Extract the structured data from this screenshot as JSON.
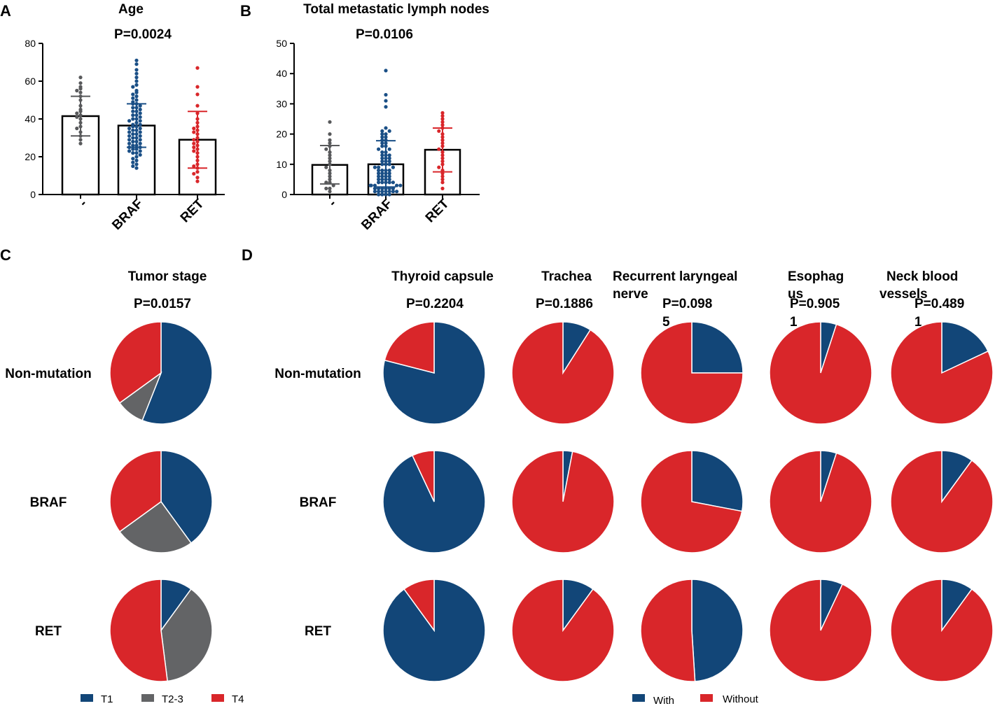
{
  "colors": {
    "t1": "#124678",
    "t23": "#636466",
    "t4": "#d9262a",
    "with": "#124678",
    "without": "#d9262a",
    "dot_none": "#58595b",
    "dot_braf": "#1a4f86",
    "dot_ret": "#d9262a"
  },
  "panel_labels": {
    "a": "A",
    "b": "B",
    "c": "C",
    "d": "D"
  },
  "groups": [
    "-",
    "BRAF",
    "RET"
  ],
  "rows": [
    "Non-mutation",
    "BRAF",
    "RET"
  ],
  "chart_data": [
    {
      "id": "A",
      "type": "bar",
      "title": "Age",
      "p_value": "P=0.0024",
      "categories": [
        "-",
        "BRAF",
        "RET"
      ],
      "values": [
        41.5,
        36.5,
        29
      ],
      "sd_low": [
        31,
        25,
        14
      ],
      "sd_high": [
        52,
        48,
        44
      ],
      "ylim": [
        0,
        80
      ],
      "yticks": [
        0,
        20,
        40,
        60,
        80
      ],
      "points": [
        [
          62,
          59,
          57,
          56,
          55,
          54,
          52,
          50,
          47,
          45,
          44,
          43,
          42,
          41,
          40,
          38,
          36,
          35,
          33,
          31,
          29,
          27
        ],
        [
          71,
          69,
          66,
          64,
          62,
          60,
          58,
          57,
          55,
          54,
          53,
          52,
          51,
          50,
          49,
          48,
          48,
          47,
          46,
          46,
          45,
          44,
          44,
          43,
          42,
          42,
          41,
          40,
          40,
          39,
          39,
          38,
          37,
          37,
          36,
          36,
          35,
          35,
          34,
          34,
          33,
          33,
          32,
          32,
          31,
          31,
          30,
          30,
          29,
          29,
          28,
          28,
          27,
          27,
          26,
          26,
          25,
          25,
          24,
          24,
          23,
          23,
          22,
          22,
          21,
          20,
          19,
          18,
          17,
          16,
          15,
          14
        ],
        [
          67,
          57,
          53,
          47,
          43,
          40,
          38,
          36,
          35,
          34,
          33,
          32,
          30,
          29,
          28,
          27,
          26,
          25,
          24,
          23,
          22,
          20,
          18,
          16,
          15,
          14,
          12,
          11,
          9,
          7
        ]
      ]
    },
    {
      "id": "B",
      "type": "bar",
      "title": "Total metastatic lymph nodes",
      "p_value": "P=0.0106",
      "categories": [
        "-",
        "BRAF",
        "RET"
      ],
      "values": [
        9.8,
        10,
        14.8
      ],
      "sd_low": [
        3.5,
        2.5,
        7.5
      ],
      "sd_high": [
        16.2,
        17.8,
        22
      ],
      "ylim": [
        0,
        50
      ],
      "yticks": [
        0,
        10,
        20,
        30,
        40,
        50
      ],
      "points": [
        [
          24,
          20,
          18,
          17,
          16,
          15,
          14,
          13,
          12,
          11,
          10,
          9,
          8,
          7,
          6,
          5,
          4,
          4,
          3,
          2,
          2,
          1
        ],
        [
          41,
          33,
          31,
          29,
          22,
          21,
          21,
          20,
          20,
          19,
          19,
          18,
          18,
          17,
          17,
          16,
          16,
          15,
          15,
          14,
          14,
          13,
          13,
          13,
          12,
          12,
          12,
          11,
          11,
          11,
          10,
          10,
          10,
          9,
          9,
          9,
          8,
          8,
          8,
          8,
          7,
          7,
          7,
          7,
          6,
          6,
          6,
          6,
          5,
          5,
          5,
          5,
          4,
          4,
          4,
          4,
          4,
          3,
          3,
          3,
          3,
          3,
          2,
          2,
          2,
          2,
          2,
          2,
          1,
          1,
          1,
          1,
          1,
          1,
          1,
          0,
          0,
          0,
          0
        ],
        [
          27,
          26,
          25,
          24,
          23,
          22,
          21,
          20,
          19,
          18,
          17,
          16,
          15,
          14,
          13,
          12,
          11,
          10,
          9,
          8,
          7,
          6,
          5,
          4,
          2
        ]
      ]
    },
    {
      "id": "C",
      "type": "pie",
      "title": "Tumor stage",
      "p_value": "P=0.0157",
      "categories": [
        "T1",
        "T2-3",
        "T4"
      ],
      "series": [
        {
          "name": "Non-mutation",
          "values": [
            56,
            9,
            35
          ]
        },
        {
          "name": "BRAF",
          "values": [
            40,
            25,
            35
          ]
        },
        {
          "name": "RET",
          "values": [
            10,
            38,
            52
          ]
        }
      ]
    },
    {
      "id": "D",
      "type": "pie",
      "title": "",
      "categories": [
        "With",
        "Without"
      ],
      "panels": [
        {
          "title": "Thyroid capsule",
          "p_value": "P=0.2204",
          "values": [
            [
              79,
              21
            ],
            [
              93,
              7
            ],
            [
              90,
              10
            ]
          ]
        },
        {
          "title": "Trachea",
          "p_value": "P=0.1886",
          "values": [
            [
              9,
              91
            ],
            [
              3,
              97
            ],
            [
              10,
              90
            ]
          ]
        },
        {
          "title": "Recurrent laryngeal nerve",
          "p_value": "P=0.0985",
          "values": [
            [
              25,
              75
            ],
            [
              28,
              72
            ],
            [
              49,
              51
            ]
          ]
        },
        {
          "title": "Esophagus",
          "p_value": "P=0.9051",
          "values": [
            [
              5,
              95
            ],
            [
              5,
              95
            ],
            [
              7,
              93
            ]
          ]
        },
        {
          "title": "Neck blood vessels",
          "p_value": "P=0.4891",
          "values": [
            [
              18,
              82
            ],
            [
              10,
              90
            ],
            [
              10,
              90
            ]
          ]
        }
      ]
    }
  ]
}
